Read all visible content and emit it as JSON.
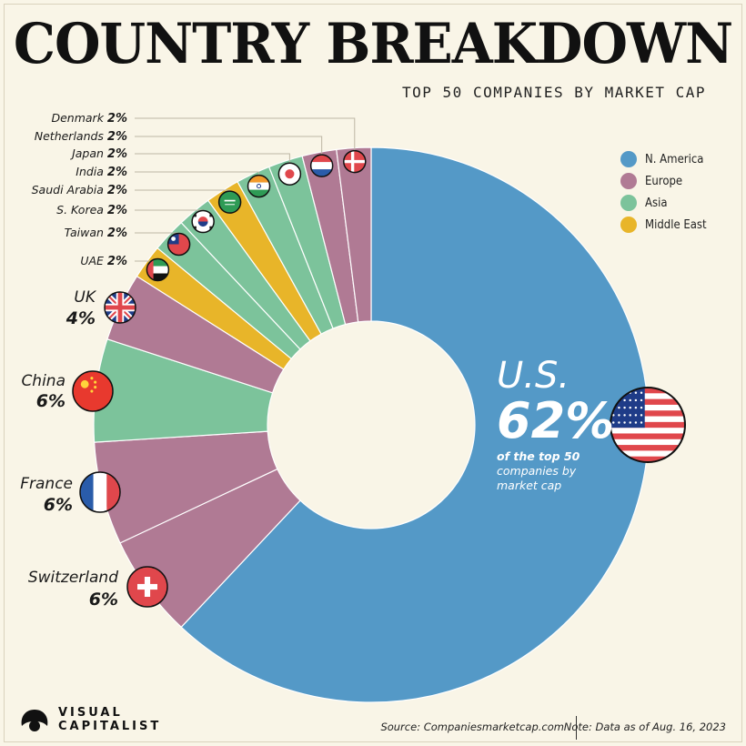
{
  "header": {
    "title": "COUNTRY BREAKDOWN",
    "subtitle": "TOP 50 COMPANIES BY MARKET CAP"
  },
  "legend": [
    {
      "label": "N. America",
      "color": "#5499c7"
    },
    {
      "label": "Europe",
      "color": "#b07a94"
    },
    {
      "label": "Asia",
      "color": "#7cc39b"
    },
    {
      "label": "Middle East",
      "color": "#e8b529"
    }
  ],
  "highlight": {
    "name": "U.S.",
    "pct": "62%",
    "note_bold": "of the top 50",
    "note_rest": "companies by market cap"
  },
  "chart_data": {
    "type": "pie",
    "title": "COUNTRY BREAKDOWN",
    "subtitle": "TOP 50 COMPANIES BY MARKET CAP",
    "unit": "%",
    "donut": true,
    "legend_position": "top-right",
    "slices": [
      {
        "country": "U.S.",
        "value": 62,
        "label": "62%",
        "region": "N. America",
        "color": "#5499c7",
        "flag": "us-flag-icon"
      },
      {
        "country": "Switzerland",
        "value": 6,
        "label": "6%",
        "region": "Europe",
        "color": "#b07a94",
        "flag": "switzerland-flag-icon"
      },
      {
        "country": "France",
        "value": 6,
        "label": "6%",
        "region": "Europe",
        "color": "#b07a94",
        "flag": "france-flag-icon"
      },
      {
        "country": "China",
        "value": 6,
        "label": "6%",
        "region": "Asia",
        "color": "#7cc39b",
        "flag": "china-flag-icon"
      },
      {
        "country": "UK",
        "value": 4,
        "label": "4%",
        "region": "Europe",
        "color": "#b07a94",
        "flag": "uk-flag-icon"
      },
      {
        "country": "UAE",
        "value": 2,
        "label": "2%",
        "region": "Middle East",
        "color": "#e8b529",
        "flag": "uae-flag-icon"
      },
      {
        "country": "Taiwan",
        "value": 2,
        "label": "2%",
        "region": "Asia",
        "color": "#7cc39b",
        "flag": "taiwan-flag-icon"
      },
      {
        "country": "S. Korea",
        "value": 2,
        "label": "2%",
        "region": "Asia",
        "color": "#7cc39b",
        "flag": "south-korea-flag-icon"
      },
      {
        "country": "Saudi Arabia",
        "value": 2,
        "label": "2%",
        "region": "Middle East",
        "color": "#e8b529",
        "flag": "saudi-arabia-flag-icon"
      },
      {
        "country": "India",
        "value": 2,
        "label": "2%",
        "region": "Asia",
        "color": "#7cc39b",
        "flag": "india-flag-icon"
      },
      {
        "country": "Japan",
        "value": 2,
        "label": "2%",
        "region": "Asia",
        "color": "#7cc39b",
        "flag": "japan-flag-icon"
      },
      {
        "country": "Netherlands",
        "value": 2,
        "label": "2%",
        "region": "Europe",
        "color": "#b07a94",
        "flag": "netherlands-flag-icon"
      },
      {
        "country": "Denmark",
        "value": 2,
        "label": "2%",
        "region": "Europe",
        "color": "#b07a94",
        "flag": "denmark-flag-icon"
      }
    ]
  },
  "footer": {
    "logo_line1": "VISUAL",
    "logo_line2": "CAPITALIST",
    "source": "Source: Companiesmarketcap.com",
    "note": "Note: Data as of Aug. 16, 2023"
  }
}
